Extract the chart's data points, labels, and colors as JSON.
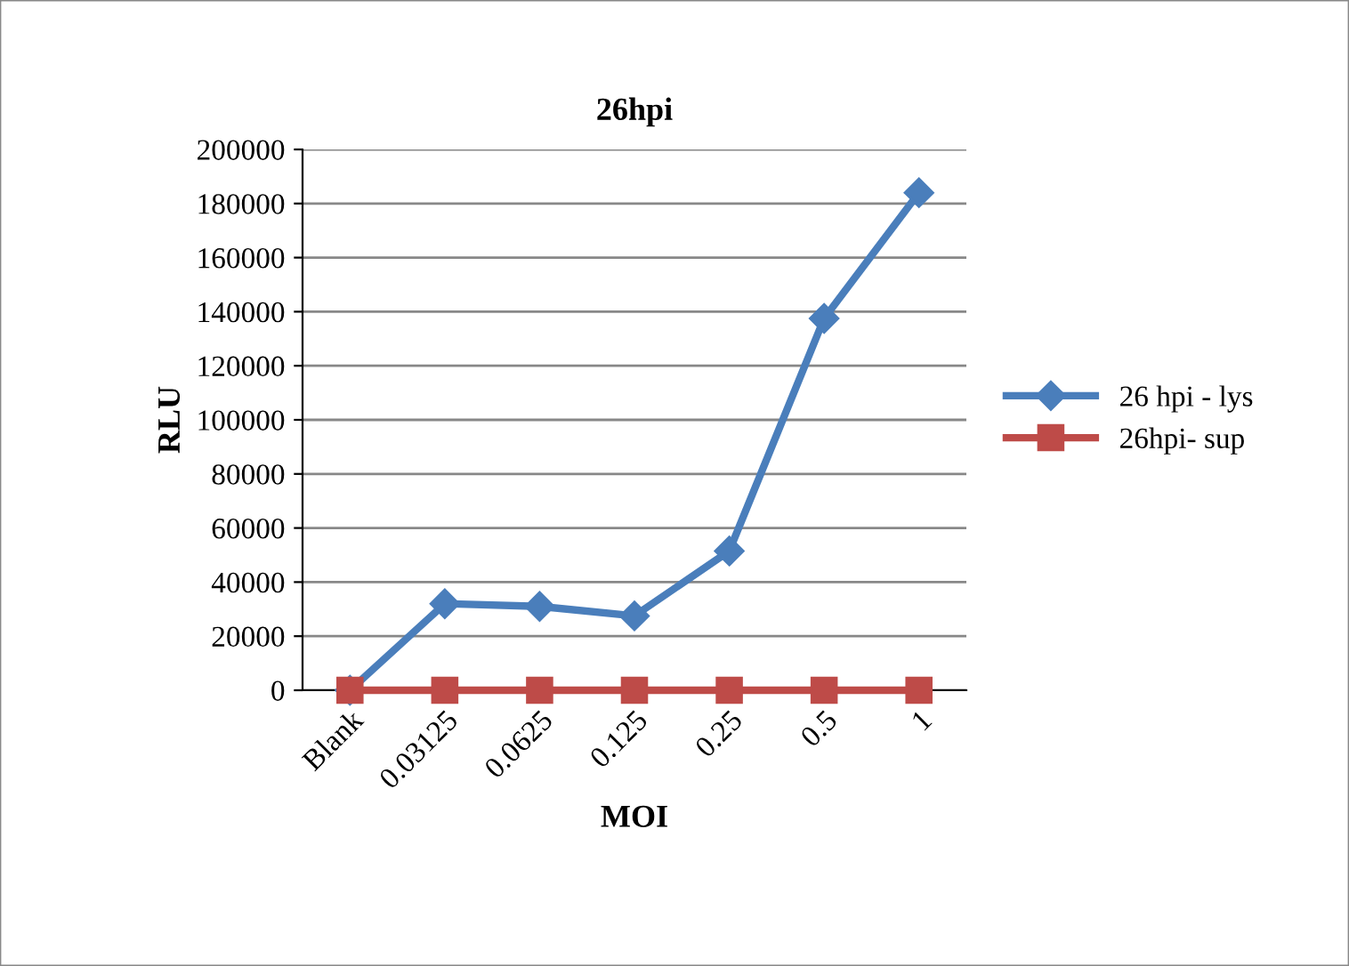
{
  "chart_data": {
    "type": "line",
    "title": "26hpi",
    "xlabel": "MOI",
    "ylabel": "RLU",
    "categories": [
      "Blank",
      "0.03125",
      "0.0625",
      "0.125",
      "0.25",
      "0.5",
      "1"
    ],
    "series": [
      {
        "name": "26 hpi - lys",
        "color": "#4a7ebb",
        "marker": "diamond",
        "values": [
          0,
          32000,
          31000,
          27500,
          51500,
          137500,
          184000
        ]
      },
      {
        "name": "26hpi- sup",
        "color": "#be4b48",
        "marker": "square",
        "values": [
          0,
          0,
          0,
          0,
          0,
          0,
          0
        ]
      }
    ],
    "ylim": [
      0,
      200000
    ],
    "yticks": [
      0,
      20000,
      40000,
      60000,
      80000,
      100000,
      120000,
      140000,
      160000,
      180000,
      200000
    ],
    "grid": "y",
    "legend": "right",
    "line_style": "solid"
  }
}
